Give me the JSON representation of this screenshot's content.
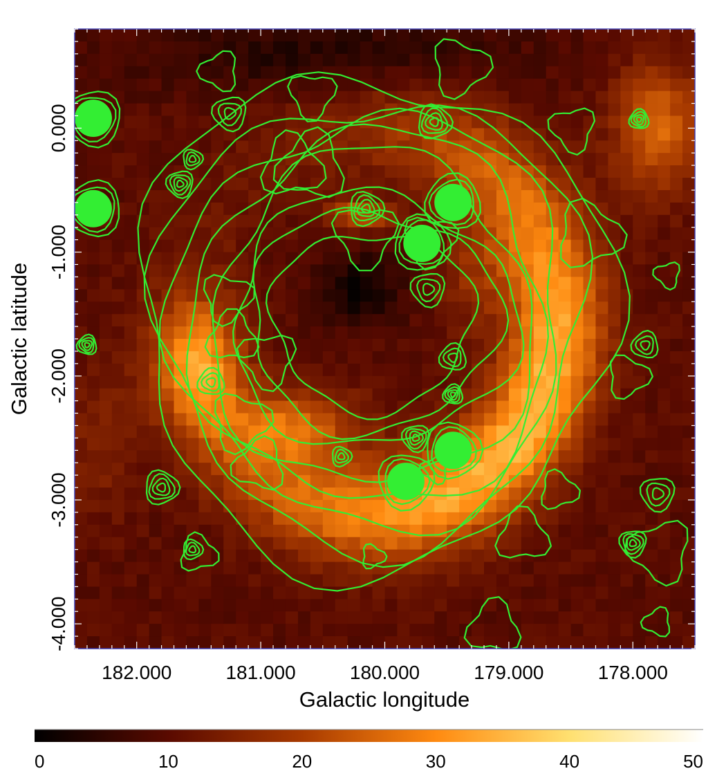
{
  "chart_data": {
    "type": "heatmap",
    "xlabel": "Galactic longitude",
    "ylabel": "Galactic latitude",
    "x_reversed": true,
    "xlim": [
      182.5,
      177.5
    ],
    "ylim": [
      -4.2,
      0.8
    ],
    "x_ticks": [
      182.0,
      181.0,
      180.0,
      179.0,
      178.0
    ],
    "x_tick_labels": [
      "182.000",
      "181.000",
      "180.000",
      "179.000",
      "178.000"
    ],
    "y_ticks": [
      0.0,
      -1.0,
      -2.0,
      -3.0,
      -4.0
    ],
    "y_tick_labels": [
      "0.000",
      "-1.000",
      "-2.000",
      "-3.000",
      "-4.000"
    ],
    "colormap": [
      "#000000",
      "#5a0a00",
      "#a83a00",
      "#ff8a10",
      "#ffe070",
      "#ffffff"
    ],
    "colorbar": {
      "range": [
        0,
        50
      ],
      "ticks": [
        0,
        10,
        20,
        30,
        40,
        50
      ],
      "tick_labels": [
        "0",
        "10",
        "20",
        "30",
        "40",
        "50"
      ]
    },
    "contour_color": "#33ee33",
    "background_level": 10,
    "shell": {
      "center": [
        180.1,
        -1.55
      ],
      "radius": 1.55,
      "width": 0.42,
      "peak": 23
    },
    "diffuse_blobs": [
      {
        "l": 181.5,
        "b": -1.9,
        "sl": 0.35,
        "sb": 0.5,
        "a": 18
      },
      {
        "l": 180.7,
        "b": -2.4,
        "sl": 0.5,
        "sb": 0.3,
        "a": 14
      },
      {
        "l": 180.2,
        "b": -0.7,
        "sl": 0.25,
        "sb": 0.12,
        "a": 14
      },
      {
        "l": 177.8,
        "b": 0.0,
        "sl": 0.35,
        "sb": 0.5,
        "a": 16
      },
      {
        "l": 182.3,
        "b": -2.5,
        "sl": 0.3,
        "sb": 0.6,
        "a": 5
      },
      {
        "l": 179.3,
        "b": -1.2,
        "sl": 0.3,
        "sb": 0.4,
        "a": 6
      }
    ],
    "dark_cavity": {
      "l": 180.2,
      "b": -1.3,
      "sl": 0.35,
      "sb": 0.3,
      "a": -9
    },
    "point_sources": [
      {
        "l": 182.35,
        "b": 0.08
      },
      {
        "l": 182.35,
        "b": -0.65
      },
      {
        "l": 179.45,
        "b": -0.6
      },
      {
        "l": 179.7,
        "b": -0.93
      },
      {
        "l": 179.45,
        "b": -2.6
      },
      {
        "l": 179.83,
        "b": -2.85
      }
    ],
    "compact_sources": [
      {
        "l": 181.55,
        "b": -0.25
      },
      {
        "l": 181.65,
        "b": -0.45
      },
      {
        "l": 181.25,
        "b": 0.12
      },
      {
        "l": 177.95,
        "b": 0.07
      },
      {
        "l": 181.4,
        "b": -2.05
      },
      {
        "l": 180.15,
        "b": -0.65
      },
      {
        "l": 180.35,
        "b": -2.65
      },
      {
        "l": 179.75,
        "b": -2.5
      },
      {
        "l": 179.65,
        "b": -1.3
      },
      {
        "l": 179.45,
        "b": -2.15
      },
      {
        "l": 179.45,
        "b": -1.85
      },
      {
        "l": 181.8,
        "b": -2.9
      },
      {
        "l": 181.55,
        "b": -3.4
      },
      {
        "l": 178.0,
        "b": -3.35
      },
      {
        "l": 177.8,
        "b": -2.95
      },
      {
        "l": 182.4,
        "b": -1.75
      },
      {
        "l": 177.9,
        "b": -1.75
      },
      {
        "l": 179.6,
        "b": 0.05
      }
    ]
  }
}
